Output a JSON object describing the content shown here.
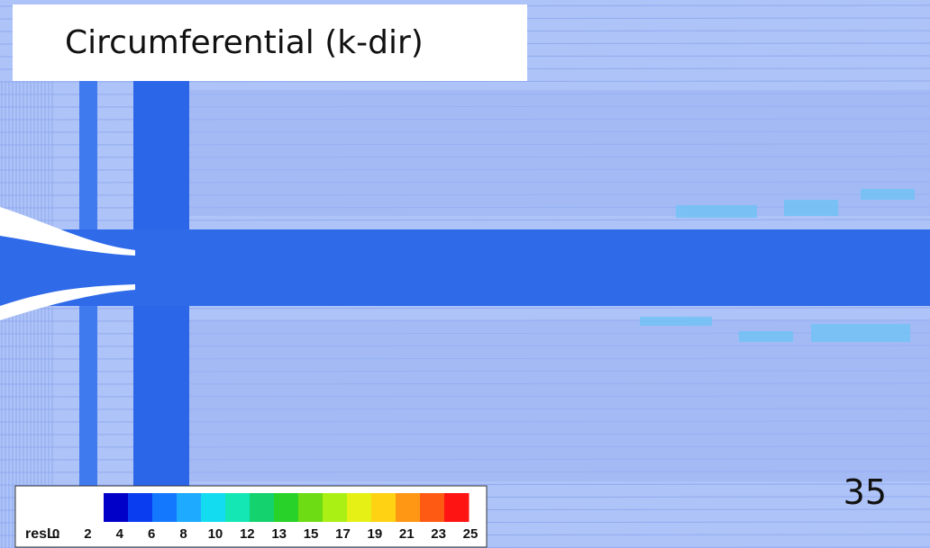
{
  "slide": {
    "title": "Circumferential (k-dir)",
    "page_number": "35"
  },
  "legend": {
    "label": "resL:",
    "ticks": [
      0,
      2,
      4,
      6,
      8,
      10,
      12,
      13,
      15,
      17,
      19,
      21,
      23,
      25
    ],
    "colors": [
      "#0000c8",
      "#0a3cf0",
      "#1478ff",
      "#1eaaff",
      "#14dcf0",
      "#14e6b4",
      "#14d26e",
      "#28d228",
      "#6edc14",
      "#aaf014",
      "#e6f014",
      "#ffd214",
      "#ff9614",
      "#ff5a14",
      "#ff1414"
    ]
  }
}
